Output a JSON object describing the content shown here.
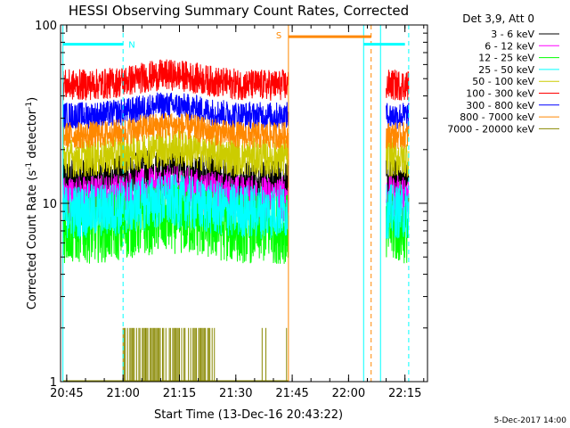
{
  "chart_data": {
    "type": "line",
    "title": "HESSI Observing Summary Count Rates, Corrected",
    "xlabel": "Start Time (13-Dec-16 20:43:22)",
    "ylabel_main": "Corrected Count Rate (s",
    "ylabel_sup1": "-1",
    "ylabel_mid": " detector",
    "ylabel_sup2": "-1",
    "ylabel_end": ")",
    "yscale": "log",
    "ylim": [
      1,
      100
    ],
    "xlim": [
      "20:43:22",
      "22:21:00"
    ],
    "x_ticks": [
      "20:45",
      "21:00",
      "21:15",
      "21:30",
      "21:45",
      "22:00",
      "22:15"
    ],
    "y_ticks": [
      "1",
      "10",
      "100"
    ],
    "legend_title": "Det 3,9, Att 0",
    "series": [
      {
        "name": "3 - 6 keV",
        "color": "#000000",
        "level": 13.5,
        "noise": 0.055
      },
      {
        "name": "6 - 12 keV",
        "color": "#ff00ff",
        "level": 10.6,
        "noise": 0.06
      },
      {
        "name": "12 - 25 keV",
        "color": "#00ff00",
        "level": 7.2,
        "noise": 0.09
      },
      {
        "name": "25 - 50 keV",
        "color": "#00ffff",
        "level": 9.0,
        "noise": 0.07
      },
      {
        "name": "50 - 100 keV",
        "color": "#cccc00",
        "level": 18.0,
        "noise": 0.05
      },
      {
        "name": "100 - 300 keV",
        "color": "#ff0000",
        "level": 46.0,
        "noise": 0.04
      },
      {
        "name": "300 - 800 keV",
        "color": "#0000ff",
        "level": 31.0,
        "noise": 0.035
      },
      {
        "name": "800 - 7000 keV",
        "color": "#ff8800",
        "level": 24.0,
        "noise": 0.035
      },
      {
        "name": "7000 - 20000 keV",
        "color": "#888800",
        "level": 1.0,
        "noise": 0
      }
    ],
    "segments": [
      {
        "start": "20:44:00",
        "end": "21:44:00"
      },
      {
        "start": "22:10:00",
        "end": "22:16:00"
      }
    ],
    "flags": {
      "night": {
        "label": "N",
        "start": "20:44:00",
        "end": "21:00:00",
        "color": "#00ffff",
        "level": 78
      },
      "saa": {
        "label": "S",
        "start": "21:44:00",
        "end": "22:06:00",
        "color": "#ff8800",
        "level": 86
      },
      "night2": {
        "start": "22:04:00",
        "end": "22:15:00",
        "color": "#00ffff",
        "level": 78
      }
    },
    "vlines": [
      {
        "time": "20:44:00",
        "color": "#00ffff",
        "style": "solid"
      },
      {
        "time": "21:00:00",
        "color": "#00ffff",
        "style": "dashed"
      },
      {
        "time": "21:44:00",
        "color": "#ff8800",
        "style": "solid"
      },
      {
        "time": "22:04:00",
        "color": "#00ffff",
        "style": "solid"
      },
      {
        "time": "22:06:00",
        "color": "#ff8800",
        "style": "dashed"
      },
      {
        "time": "22:08:30",
        "color": "#00ffff",
        "style": "solid"
      },
      {
        "time": "22:16:00",
        "color": "#00ffff",
        "style": "dashed"
      }
    ],
    "footer": "5-Dec-2017 14:00"
  }
}
